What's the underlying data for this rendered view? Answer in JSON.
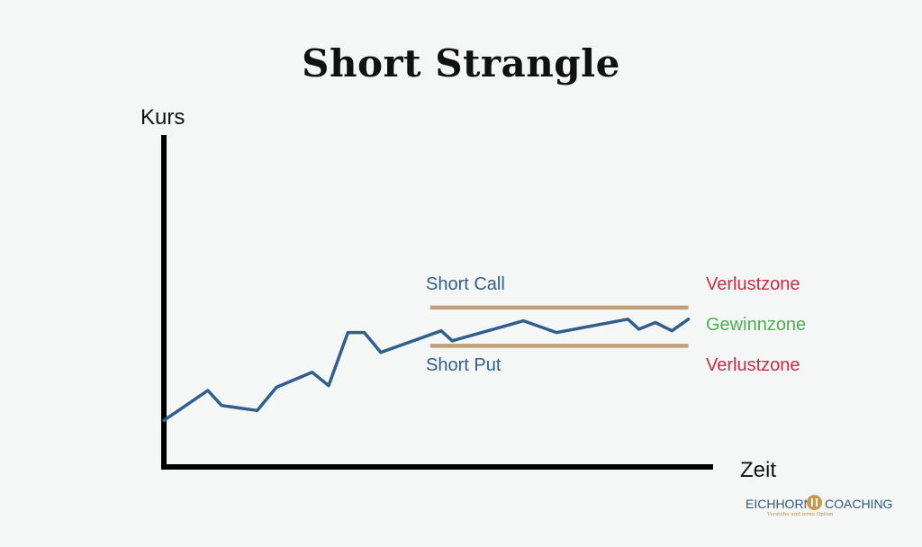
{
  "chart_data": {
    "type": "line",
    "title": "Short Strangle",
    "ylabel": "Kurs",
    "xlabel": "Zeit",
    "colors": {
      "axis": "#000000",
      "price_line": "#2f5f8a",
      "band_lines": "#c2a077",
      "loss": "#cf2a45",
      "profit": "#4caf50",
      "band_label": "#2f5f8a"
    },
    "series": [
      {
        "values": [
          [
            0.0,
            14.0
          ],
          [
            8.0,
            23.0
          ],
          [
            10.5,
            18.5
          ],
          [
            17.0,
            17.0
          ],
          [
            20.5,
            24.0
          ],
          [
            27.0,
            28.5
          ],
          [
            30.0,
            24.5
          ],
          [
            33.5,
            40.5
          ],
          [
            36.5,
            40.5
          ],
          [
            39.5,
            34.5
          ],
          [
            50.5,
            41.0
          ],
          [
            52.5,
            38.0
          ],
          [
            65.5,
            44.0
          ],
          [
            71.5,
            40.5
          ],
          [
            84.5,
            44.5
          ],
          [
            86.5,
            41.5
          ],
          [
            89.5,
            43.5
          ],
          [
            92.5,
            41.0
          ],
          [
            95.5,
            44.5
          ]
        ]
      }
    ],
    "band": {
      "x_start": 48.5,
      "x_end": 95.5,
      "upper": 48.0,
      "lower": 36.5
    },
    "band_labels": {
      "upper": "Short Call",
      "lower": "Short Put"
    },
    "zones": {
      "upper": "Verlustzone",
      "middle": "Gewinnzone",
      "lower": "Verlustzone"
    }
  },
  "logo": {
    "left": "EICHHORN",
    "right": "COACHING",
    "tagline": "Verstehe und lerne Option"
  }
}
